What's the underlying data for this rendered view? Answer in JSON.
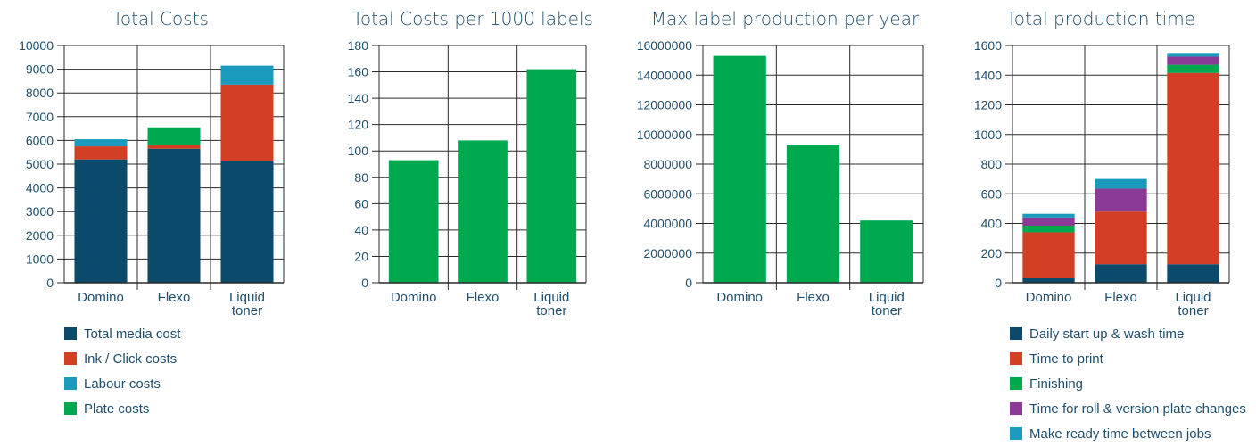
{
  "chart_data": [
    {
      "type": "bar",
      "stacked": true,
      "title": "Total Costs",
      "categories": [
        [
          "Domino"
        ],
        [
          "Flexo"
        ],
        [
          "Liquid",
          "toner"
        ]
      ],
      "ylim": [
        0,
        10000
      ],
      "yticks": [
        0,
        1000,
        2000,
        3000,
        4000,
        5000,
        6000,
        7000,
        8000,
        9000,
        10000
      ],
      "series": [
        {
          "name": "Total media cost",
          "color": "#0b4a6b",
          "values": [
            5200,
            5650,
            5150
          ]
        },
        {
          "name": "Ink / Click costs",
          "color": "#d33f24",
          "values": [
            550,
            150,
            3200
          ]
        },
        {
          "name": "Labour costs",
          "color": "#1a9bbd",
          "values": [
            300,
            0,
            800
          ]
        },
        {
          "name": "Plate costs",
          "color": "#00a850",
          "values": [
            0,
            750,
            0
          ]
        }
      ],
      "grid": true,
      "legend": "below"
    },
    {
      "type": "bar",
      "title": "Total Costs per 1000 labels",
      "categories": [
        [
          "Domino"
        ],
        [
          "Flexo"
        ],
        [
          "Liquid",
          "toner"
        ]
      ],
      "ylim": [
        0,
        180
      ],
      "yticks": [
        0,
        20,
        40,
        60,
        80,
        100,
        120,
        140,
        160,
        180
      ],
      "series": [
        {
          "color": "#00a850",
          "values": [
            93,
            108,
            162
          ]
        }
      ],
      "grid": true
    },
    {
      "type": "bar",
      "title": "Max label production per year",
      "categories": [
        [
          "Domino"
        ],
        [
          "Flexo"
        ],
        [
          "Liquid",
          "toner"
        ]
      ],
      "ylim": [
        0,
        16000000
      ],
      "yticks": [
        0,
        2000000,
        4000000,
        6000000,
        8000000,
        10000000,
        12000000,
        14000000,
        16000000
      ],
      "series": [
        {
          "color": "#00a850",
          "values": [
            15300000,
            9300000,
            4200000
          ]
        }
      ],
      "grid": true
    },
    {
      "type": "bar",
      "stacked": true,
      "title": "Total production time",
      "categories": [
        [
          "Domino"
        ],
        [
          "Flexo"
        ],
        [
          "Liquid",
          "toner"
        ]
      ],
      "ylim": [
        0,
        1600
      ],
      "yticks": [
        0,
        200,
        400,
        600,
        800,
        1000,
        1200,
        1400,
        1600
      ],
      "series": [
        {
          "name": "Daily start up & wash time",
          "color": "#0b4a6b",
          "values": [
            30,
            125,
            125
          ]
        },
        {
          "name": "Time to print",
          "color": "#d33f24",
          "values": [
            310,
            355,
            1290
          ]
        },
        {
          "name": "Finishing",
          "color": "#00a850",
          "values": [
            45,
            0,
            55
          ]
        },
        {
          "name": "Time for roll & version plate changes",
          "color": "#8b3a96",
          "values": [
            55,
            155,
            55
          ]
        },
        {
          "name": "Make ready time between jobs",
          "color": "#1a9bbd",
          "values": [
            25,
            65,
            25
          ]
        }
      ],
      "grid": true,
      "legend": "below"
    }
  ]
}
